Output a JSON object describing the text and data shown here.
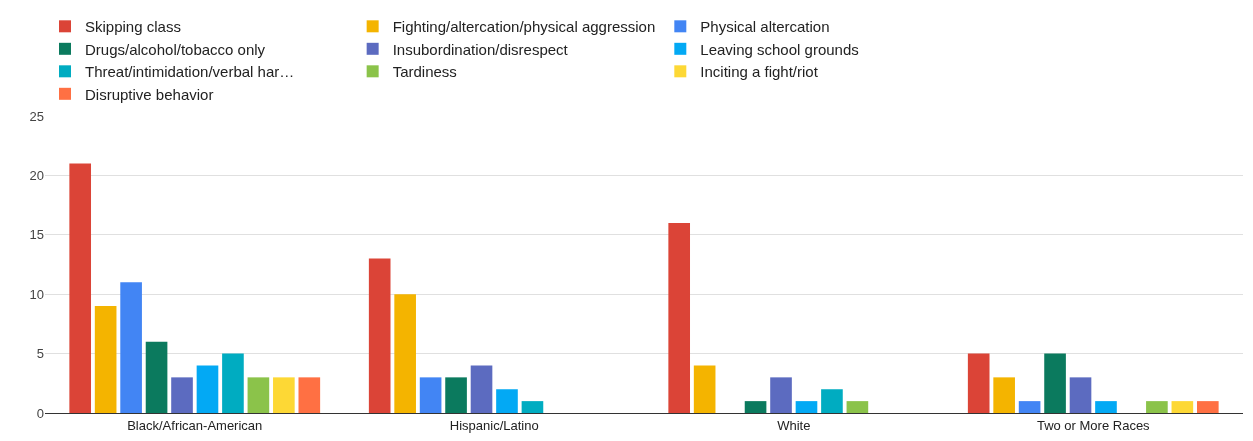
{
  "chart_data": {
    "type": "bar",
    "categories": [
      "Black/African-American",
      "Hispanic/Latino",
      "White",
      "Two or More Races"
    ],
    "series": [
      {
        "name": "Skipping class",
        "color": "#db4437",
        "values": [
          21,
          13,
          16,
          5
        ]
      },
      {
        "name": "Fighting/altercation/physical aggression",
        "color": "#f4b400",
        "values": [
          9,
          10,
          4,
          3
        ]
      },
      {
        "name": "Physical altercation",
        "color": "#4285f4",
        "values": [
          11,
          3,
          0,
          1
        ]
      },
      {
        "name": "Drugs/alcohol/tobacco only",
        "color": "#0b7a5e",
        "values": [
          6,
          3,
          1,
          5
        ]
      },
      {
        "name": "Insubordination/disrespect",
        "color": "#5c6bc0",
        "values": [
          3,
          4,
          3,
          3
        ]
      },
      {
        "name": "Leaving school grounds",
        "color": "#03a9f4",
        "values": [
          4,
          2,
          1,
          1
        ]
      },
      {
        "name": "Threat/intimidation/verbal har…",
        "color": "#00acc1",
        "values": [
          5,
          1,
          2,
          0
        ]
      },
      {
        "name": "Tardiness",
        "color": "#8bc34a",
        "values": [
          3,
          0,
          1,
          1
        ]
      },
      {
        "name": "Inciting a fight/riot",
        "color": "#fdd835",
        "values": [
          3,
          0,
          0,
          1
        ]
      },
      {
        "name": "Disruptive behavior",
        "color": "#ff7043",
        "values": [
          3,
          0,
          0,
          1
        ]
      }
    ],
    "ylim": [
      0,
      25
    ],
    "yticks": [
      0,
      5,
      10,
      15,
      20,
      25
    ],
    "grid": "y",
    "legend": "top"
  }
}
